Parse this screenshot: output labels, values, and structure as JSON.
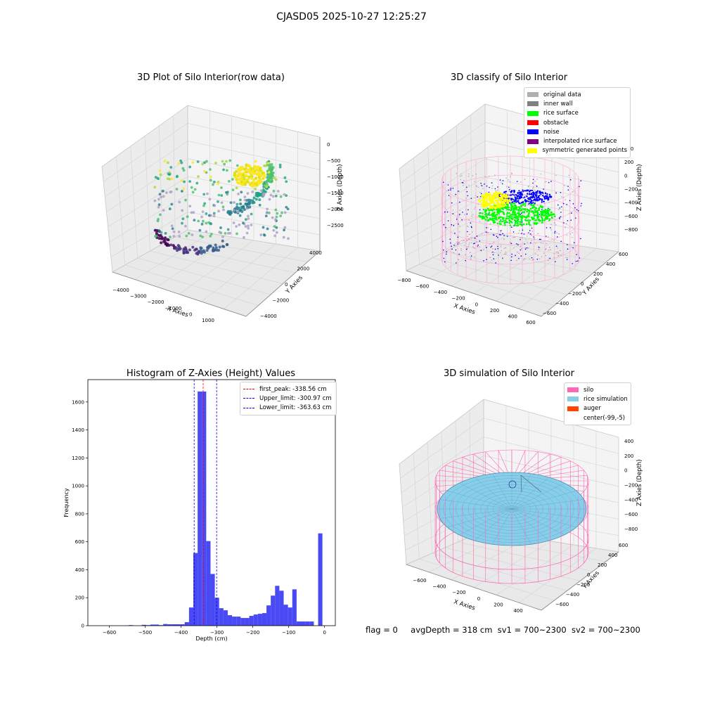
{
  "figure": {
    "suptitle": "CJASD05 2025-10-27 12:25:27",
    "footer": {
      "flag": "flag = 0",
      "avg_depth": "avgDepth = 318 cm",
      "sv1": "sv1 = 700~2300",
      "sv2": "sv2 = 700~2300"
    }
  },
  "colors": {
    "original": "#b0b0b0",
    "inner_wall": "#808080",
    "rice_surface": "#00ff00",
    "obstacle": "#ff0000",
    "noise": "#0000ff",
    "interpolated": "#800080",
    "symmetric": "#ffff00",
    "silo": "#ff69b4",
    "rice_sim": "#87ceeb",
    "auger": "#ff4500",
    "hist_bar": "#4a4af5"
  },
  "chart_data": [
    {
      "type": "scatter",
      "subtype": "3d",
      "title": "3D Plot of Silo Interior(row data)",
      "xlabel": "X Axies",
      "ylabel": "Y Axies",
      "zlabel": "Z Axies (Depth)",
      "x_ticks": [
        "−4000",
        "−3000",
        "−2000",
        "−1000",
        "0",
        "1000"
      ],
      "y_ticks": [
        "−4000",
        "−2000",
        "0",
        "2000",
        "4000"
      ],
      "z_ticks": [
        "0",
        "−500",
        "−1000",
        "−1500",
        "−2000",
        "−2500"
      ],
      "colormap": "viridis"
    },
    {
      "type": "scatter",
      "subtype": "3d",
      "title": "3D classify of Silo Interior",
      "zlabel": "Z Axies (Depth)",
      "xlabel": "X Axies",
      "ylabel": "Y Axies",
      "x_ticks": [
        "−800",
        "−600",
        "−400",
        "−200",
        "0",
        "200",
        "400",
        "600"
      ],
      "y_ticks": [
        "−600",
        "−400",
        "−200",
        "0",
        "200",
        "400",
        "600"
      ],
      "z_ticks": [
        "400",
        "200",
        "0",
        "−200",
        "−400",
        "−600",
        "−800"
      ],
      "legend": [
        {
          "label": "original data",
          "color": "#b0b0b0"
        },
        {
          "label": "inner wall",
          "color": "#808080"
        },
        {
          "label": "rice surface",
          "color": "#00ff00"
        },
        {
          "label": "obstacle",
          "color": "#ff0000"
        },
        {
          "label": "noise",
          "color": "#0000ff"
        },
        {
          "label": "interpolated rice surface",
          "color": "#800080"
        },
        {
          "label": "symmetric generated points",
          "color": "#ffff00"
        }
      ],
      "legend_position": "top-right"
    },
    {
      "type": "bar",
      "subtype": "histogram",
      "title": "Histogram of Z-Axies (Height) Values",
      "xlabel": "Depth (cm)",
      "ylabel": "Frequency",
      "xlim": [
        -660,
        30
      ],
      "ylim": [
        0,
        1760
      ],
      "x_ticks": [
        -600,
        -500,
        -400,
        -300,
        -200,
        -100,
        0
      ],
      "y_ticks": [
        0,
        200,
        400,
        600,
        800,
        1000,
        1200,
        1400,
        1600
      ],
      "bin_width": 12,
      "bins": [
        {
          "x": -540,
          "v": 4
        },
        {
          "x": -504,
          "v": 6
        },
        {
          "x": -492,
          "v": 4
        },
        {
          "x": -480,
          "v": 8
        },
        {
          "x": -468,
          "v": 8
        },
        {
          "x": -456,
          "v": 4
        },
        {
          "x": -444,
          "v": 12
        },
        {
          "x": -432,
          "v": 10
        },
        {
          "x": -420,
          "v": 10
        },
        {
          "x": -408,
          "v": 10
        },
        {
          "x": -396,
          "v": 10
        },
        {
          "x": -384,
          "v": 25
        },
        {
          "x": -372,
          "v": 130
        },
        {
          "x": -360,
          "v": 520
        },
        {
          "x": -348,
          "v": 1675
        },
        {
          "x": -336,
          "v": 1675
        },
        {
          "x": -324,
          "v": 605
        },
        {
          "x": -312,
          "v": 370
        },
        {
          "x": -300,
          "v": 200
        },
        {
          "x": -288,
          "v": 125
        },
        {
          "x": -276,
          "v": 110
        },
        {
          "x": -264,
          "v": 75
        },
        {
          "x": -252,
          "v": 65
        },
        {
          "x": -240,
          "v": 65
        },
        {
          "x": -228,
          "v": 55
        },
        {
          "x": -216,
          "v": 55
        },
        {
          "x": -204,
          "v": 70
        },
        {
          "x": -192,
          "v": 80
        },
        {
          "x": -180,
          "v": 85
        },
        {
          "x": -168,
          "v": 90
        },
        {
          "x": -156,
          "v": 145
        },
        {
          "x": -144,
          "v": 215
        },
        {
          "x": -132,
          "v": 285
        },
        {
          "x": -120,
          "v": 250
        },
        {
          "x": -108,
          "v": 150
        },
        {
          "x": -96,
          "v": 130
        },
        {
          "x": -84,
          "v": 260
        },
        {
          "x": -72,
          "v": 30
        },
        {
          "x": -60,
          "v": 30
        },
        {
          "x": -48,
          "v": 30
        },
        {
          "x": -36,
          "v": 30
        },
        {
          "x": -12,
          "v": 660
        }
      ],
      "vlines": [
        {
          "label": "first_peak: -338.56 cm",
          "value": -338.56,
          "color": "#ff0000"
        },
        {
          "label": "Upper_limit: -300.97 cm",
          "value": -300.97,
          "color": "#0000ff"
        },
        {
          "label": "Lower_limit: -363.63 cm",
          "value": -363.63,
          "color": "#0000ff"
        }
      ],
      "legend_position": "top-right"
    },
    {
      "type": "other",
      "subtype": "3d-surface",
      "title": "3D simulation of Silo Interior",
      "zlabel": "Z Axies (Depth)",
      "xlabel": "X Axies",
      "ylabel": "Y Axies",
      "x_ticks": [
        "−600",
        "−400",
        "−200",
        "0",
        "200",
        "400"
      ],
      "y_ticks": [
        "−600",
        "−400",
        "−200",
        "0",
        "200",
        "400",
        "600"
      ],
      "z_ticks": [
        "400",
        "200",
        "0",
        "−200",
        "−400",
        "−600",
        "−800"
      ],
      "legend": [
        {
          "label": "silo",
          "color": "#ff69b4"
        },
        {
          "label": "rice simulation",
          "color": "#87ceeb"
        },
        {
          "label": "auger",
          "color": "#ff4500"
        },
        {
          "label": "center(-99,-5)",
          "color": ""
        }
      ],
      "legend_position": "top-right"
    }
  ]
}
